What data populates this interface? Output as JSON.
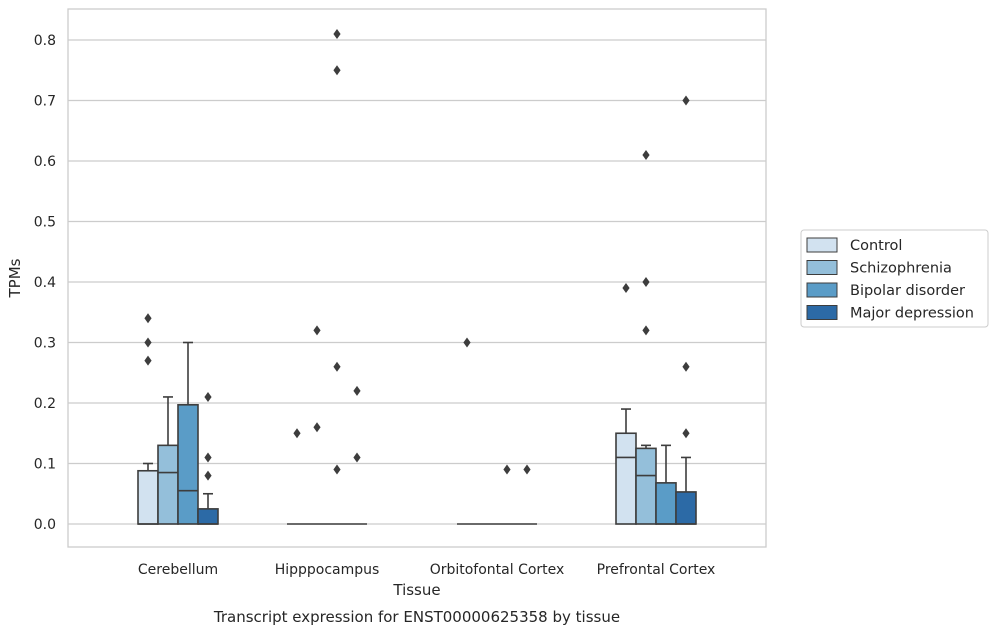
{
  "chart_data": {
    "type": "box",
    "title": "Transcript expression for ENST00000625358 by tissue",
    "xlabel": "Tissue",
    "ylabel": "TPMs",
    "ylim": [
      -0.04,
      0.855
    ],
    "yticks": [
      0.0,
      0.1,
      0.2,
      0.3,
      0.4,
      0.5,
      0.6,
      0.7,
      0.8
    ],
    "ytick_labels": [
      "0.0",
      "0.1",
      "0.2",
      "0.3",
      "0.4",
      "0.5",
      "0.6",
      "0.7",
      "0.8"
    ],
    "grid": "horizontal",
    "legend_position": "right",
    "categories": [
      "Cerebellum",
      "Hipppocampus",
      "Orbitofontal Cortex",
      "Prefrontal Cortex"
    ],
    "series": [
      {
        "name": "Control",
        "color": "#d2e2f0",
        "boxes": [
          {
            "q1": 0.0,
            "median": 0.0,
            "q3": 0.088,
            "whisker_low": 0.0,
            "whisker_high": 0.1,
            "outliers": [
              0.34,
              0.3,
              0.27
            ]
          },
          {
            "q1": 0.0,
            "median": 0.0,
            "q3": 0.0,
            "whisker_low": 0.0,
            "whisker_high": 0.0,
            "outliers": [
              0.15
            ]
          },
          {
            "q1": 0.0,
            "median": 0.0,
            "q3": 0.0,
            "whisker_low": 0.0,
            "whisker_high": 0.0,
            "outliers": [
              0.3
            ]
          },
          {
            "q1": 0.0,
            "median": 0.11,
            "q3": 0.15,
            "whisker_low": 0.0,
            "whisker_high": 0.19,
            "outliers": [
              0.39
            ]
          }
        ]
      },
      {
        "name": "Schizophrenia",
        "color": "#94bfda",
        "boxes": [
          {
            "q1": 0.0,
            "median": 0.085,
            "q3": 0.13,
            "whisker_low": 0.0,
            "whisker_high": 0.21,
            "outliers": []
          },
          {
            "q1": 0.0,
            "median": 0.0,
            "q3": 0.0,
            "whisker_low": 0.0,
            "whisker_high": 0.0,
            "outliers": [
              0.32,
              0.16
            ]
          },
          {
            "q1": 0.0,
            "median": 0.0,
            "q3": 0.0,
            "whisker_low": 0.0,
            "whisker_high": 0.0,
            "outliers": []
          },
          {
            "q1": 0.0,
            "median": 0.08,
            "q3": 0.125,
            "whisker_low": 0.0,
            "whisker_high": 0.13,
            "outliers": [
              0.61,
              0.4,
              0.32
            ]
          }
        ]
      },
      {
        "name": "Bipolar disorder",
        "color": "#5a9cc7",
        "boxes": [
          {
            "q1": 0.0,
            "median": 0.055,
            "q3": 0.197,
            "whisker_low": 0.0,
            "whisker_high": 0.3,
            "outliers": []
          },
          {
            "q1": 0.0,
            "median": 0.0,
            "q3": 0.0,
            "whisker_low": 0.0,
            "whisker_high": 0.0,
            "outliers": [
              0.81,
              0.75,
              0.26,
              0.09
            ]
          },
          {
            "q1": 0.0,
            "median": 0.0,
            "q3": 0.0,
            "whisker_low": 0.0,
            "whisker_high": 0.0,
            "outliers": [
              0.09
            ]
          },
          {
            "q1": 0.0,
            "median": 0.0,
            "q3": 0.068,
            "whisker_low": 0.0,
            "whisker_high": 0.13,
            "outliers": []
          }
        ]
      },
      {
        "name": "Major depression",
        "color": "#2c6aa6",
        "boxes": [
          {
            "q1": 0.0,
            "median": 0.0,
            "q3": 0.025,
            "whisker_low": 0.0,
            "whisker_high": 0.05,
            "outliers": [
              0.21,
              0.11,
              0.08
            ]
          },
          {
            "q1": 0.0,
            "median": 0.0,
            "q3": 0.0,
            "whisker_low": 0.0,
            "whisker_high": 0.0,
            "outliers": [
              0.22,
              0.11
            ]
          },
          {
            "q1": 0.0,
            "median": 0.0,
            "q3": 0.0,
            "whisker_low": 0.0,
            "whisker_high": 0.0,
            "outliers": [
              0.09
            ]
          },
          {
            "q1": 0.0,
            "median": 0.0,
            "q3": 0.053,
            "whisker_low": 0.0,
            "whisker_high": 0.11,
            "outliers": [
              0.7,
              0.26,
              0.15
            ]
          }
        ]
      }
    ]
  }
}
